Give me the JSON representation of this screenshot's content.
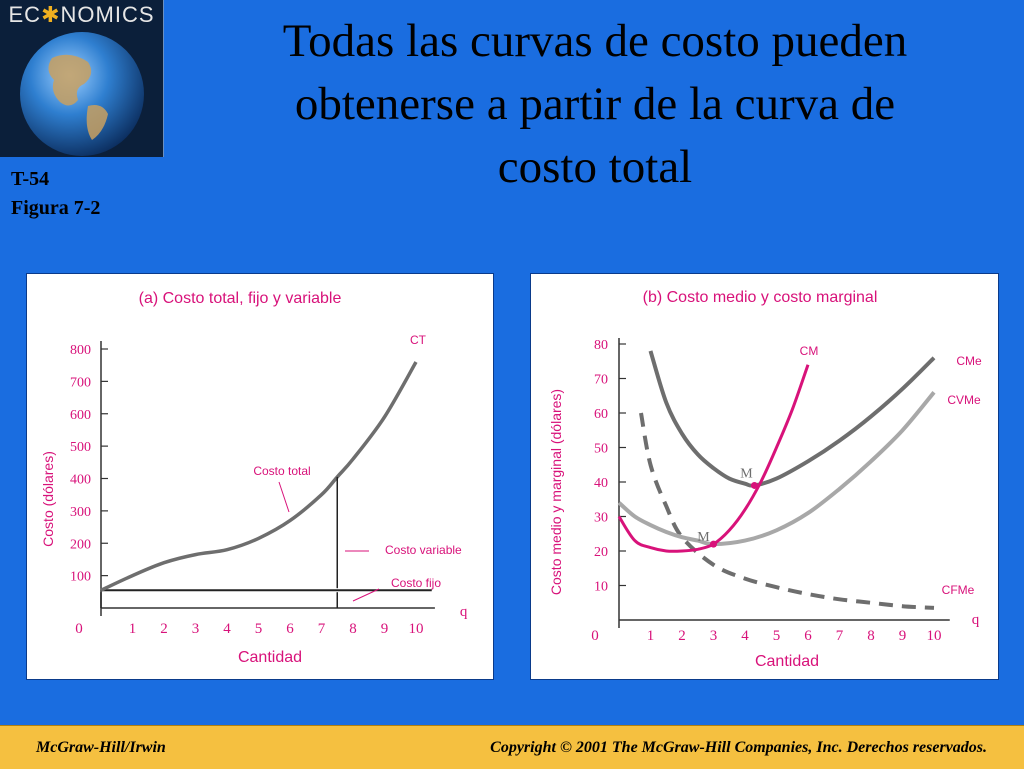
{
  "logo": {
    "text_pre": "EC",
    "text_post": "NOMICS"
  },
  "slide": {
    "code": "T-54",
    "figure": "Figura 7-2"
  },
  "title": {
    "line1": "Todas las curvas de costo pueden",
    "line2": "obtenerse a partir de la curva de",
    "line3": "costo total"
  },
  "footer": {
    "left": "McGraw-Hill/Irwin",
    "right": "Copyright © 2001 The McGraw-Hill Companies, Inc. Derechos reservados."
  },
  "colors": {
    "background": "#1a6de0",
    "magenta": "#d8127a",
    "footer": "#f5c040",
    "dark_gray": "#6e6e6e",
    "light_gray": "#a8a8a8"
  },
  "chart_data": [
    {
      "type": "line",
      "title": "(a) Costo total, fijo y variable",
      "xlabel": "Cantidad",
      "ylabel": "Costo (dólares)",
      "x_axis_letter": "q",
      "xlim": [
        0,
        10
      ],
      "ylim": [
        0,
        800
      ],
      "x_ticks": [
        "0",
        "1",
        "2",
        "3",
        "4",
        "5",
        "6",
        "7",
        "8",
        "9",
        "10"
      ],
      "y_ticks": [
        "100",
        "200",
        "300",
        "400",
        "500",
        "600",
        "700",
        "800"
      ],
      "series": [
        {
          "name": "CT",
          "x": [
            0,
            1,
            2,
            3,
            4,
            5,
            6,
            7,
            7.5,
            8,
            9,
            10
          ],
          "y": [
            55,
            100,
            140,
            165,
            180,
            215,
            270,
            350,
            405,
            460,
            590,
            760
          ]
        },
        {
          "name": "Costo fijo",
          "x": [
            0,
            10.5
          ],
          "y": [
            55,
            55
          ]
        }
      ],
      "annotations": [
        "Costo total",
        "Costo variable",
        "Costo fijo"
      ]
    },
    {
      "type": "line",
      "title": "(b) Costo medio y costo marginal",
      "xlabel": "Cantidad",
      "ylabel": "Costo medio y marginal (dólares)",
      "x_axis_letter": "q",
      "xlim": [
        0,
        10
      ],
      "ylim": [
        0,
        80
      ],
      "x_ticks": [
        "0",
        "1",
        "2",
        "3",
        "4",
        "5",
        "6",
        "7",
        "8",
        "9",
        "10"
      ],
      "y_ticks": [
        "10",
        "20",
        "30",
        "40",
        "50",
        "60",
        "70",
        "80"
      ],
      "series": [
        {
          "name": "CM",
          "x": [
            0,
            0.5,
            1,
            1.5,
            2,
            2.5,
            3,
            3.5,
            4,
            4.5,
            5,
            5.5,
            6
          ],
          "y": [
            30,
            23,
            21,
            20,
            20,
            20.5,
            22,
            26,
            32,
            40,
            50,
            61,
            74
          ]
        },
        {
          "name": "CMe",
          "x": [
            1,
            1.5,
            2,
            2.5,
            3,
            3.5,
            4,
            4.3,
            5,
            6,
            7,
            8,
            9,
            10
          ],
          "y": [
            78,
            63,
            54,
            48,
            44,
            41,
            39.5,
            39,
            41,
            46,
            52,
            59,
            67,
            76
          ]
        },
        {
          "name": "CVMe",
          "x": [
            0,
            0.5,
            1,
            1.5,
            2,
            2.5,
            3,
            4,
            5,
            6,
            7,
            8,
            9,
            10
          ],
          "y": [
            34,
            30,
            27.5,
            25.5,
            24,
            23,
            22,
            23,
            26,
            31,
            38,
            46,
            55,
            66
          ]
        },
        {
          "name": "CFMe",
          "x": [
            0.7,
            1,
            1.5,
            2,
            3,
            4,
            5,
            6,
            7,
            8,
            9,
            10
          ],
          "y": [
            60,
            45,
            33,
            24,
            16,
            12,
            9.5,
            7.5,
            6,
            5,
            4,
            3.5
          ]
        }
      ],
      "points": [
        {
          "label": "M",
          "x": 4.3,
          "y": 39
        },
        {
          "label": "M",
          "x": 3,
          "y": 22
        }
      ]
    }
  ]
}
